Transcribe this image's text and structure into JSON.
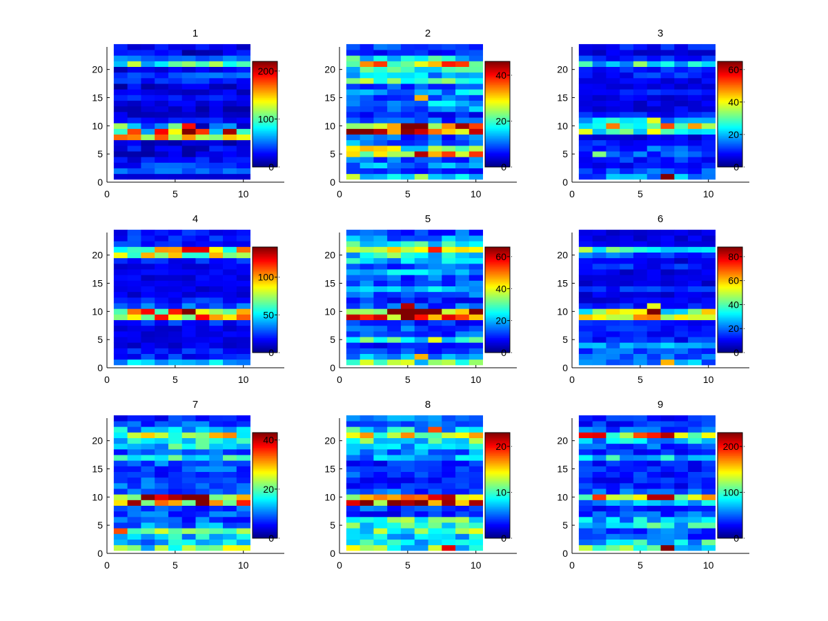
{
  "chart_data": [
    {
      "type": "heatmap",
      "title": "1",
      "xlim": [
        0,
        13
      ],
      "ylim": [
        0,
        24
      ],
      "xticks": [
        0,
        5,
        10
      ],
      "yticks": [
        0,
        5,
        10,
        15,
        20
      ],
      "clim": [
        0,
        220
      ],
      "cticks": [
        0,
        100,
        200
      ],
      "colormap": "jet",
      "seed": 1,
      "rows": [
        [
          "17",
          "20"
        ],
        [
          "40",
          "55"
        ],
        [
          "20",
          "60"
        ],
        [
          "10",
          "40"
        ],
        [
          "5",
          "30"
        ],
        [
          "5",
          "40"
        ],
        [
          "5",
          "30"
        ],
        [
          "110",
          "175"
        ],
        [
          "60",
          "220"
        ],
        [
          "10",
          "120"
        ],
        [
          "20",
          "40"
        ],
        [
          "10",
          "30"
        ],
        [
          "5",
          "25"
        ],
        [
          "15",
          "35"
        ],
        [
          "20",
          "40"
        ],
        [
          "10",
          "30"
        ],
        [
          "5",
          "35"
        ],
        [
          "20",
          "45"
        ],
        [
          "30",
          "60"
        ],
        [
          "10",
          "40"
        ],
        [
          "60",
          "130"
        ],
        [
          "30",
          "60"
        ],
        [
          "5",
          "40"
        ],
        [
          "10",
          "35"
        ]
      ]
    },
    {
      "type": "heatmap",
      "title": "2",
      "xlim": [
        0,
        13
      ],
      "ylim": [
        0,
        24
      ],
      "xticks": [
        0,
        5,
        10
      ],
      "yticks": [
        0,
        5,
        10,
        15,
        20
      ],
      "clim": [
        0,
        46
      ],
      "cticks": [
        0,
        20,
        40
      ],
      "colormap": "jet",
      "seed": 2
    },
    {
      "type": "heatmap",
      "title": "3",
      "xlim": [
        0,
        13
      ],
      "ylim": [
        0,
        24
      ],
      "xticks": [
        0,
        5,
        10
      ],
      "yticks": [
        0,
        5,
        10,
        15,
        20
      ],
      "clim": [
        0,
        65
      ],
      "cticks": [
        0,
        20,
        40,
        60
      ],
      "colormap": "jet",
      "seed": 3
    },
    {
      "type": "heatmap",
      "title": "4",
      "xlim": [
        0,
        13
      ],
      "ylim": [
        0,
        24
      ],
      "xticks": [
        0,
        5,
        10
      ],
      "yticks": [
        0,
        5,
        10,
        15,
        20
      ],
      "clim": [
        0,
        140
      ],
      "cticks": [
        0,
        50,
        100
      ],
      "colormap": "jet",
      "seed": 4
    },
    {
      "type": "heatmap",
      "title": "5",
      "xlim": [
        0,
        13
      ],
      "ylim": [
        0,
        24
      ],
      "xticks": [
        0,
        5,
        10
      ],
      "yticks": [
        0,
        5,
        10,
        15,
        20
      ],
      "clim": [
        0,
        66
      ],
      "cticks": [
        0,
        20,
        40,
        60
      ],
      "colormap": "jet",
      "seed": 5
    },
    {
      "type": "heatmap",
      "title": "6",
      "xlim": [
        0,
        13
      ],
      "ylim": [
        0,
        24
      ],
      "xticks": [
        0,
        5,
        10
      ],
      "yticks": [
        0,
        5,
        10,
        15,
        20
      ],
      "clim": [
        0,
        88
      ],
      "cticks": [
        0,
        20,
        40,
        60,
        80
      ],
      "colormap": "jet",
      "seed": 6
    },
    {
      "type": "heatmap",
      "title": "7",
      "xlim": [
        0,
        13
      ],
      "ylim": [
        0,
        24
      ],
      "xticks": [
        0,
        5,
        10
      ],
      "yticks": [
        0,
        5,
        10,
        15,
        20
      ],
      "clim": [
        0,
        43
      ],
      "cticks": [
        0,
        20,
        40
      ],
      "colormap": "jet",
      "seed": 7
    },
    {
      "type": "heatmap",
      "title": "8",
      "xlim": [
        0,
        13
      ],
      "ylim": [
        0,
        24
      ],
      "xticks": [
        0,
        5,
        10
      ],
      "yticks": [
        0,
        5,
        10,
        15,
        20
      ],
      "clim": [
        0,
        23
      ],
      "cticks": [
        0,
        10,
        20
      ],
      "colormap": "jet",
      "seed": 8
    },
    {
      "type": "heatmap",
      "title": "9",
      "xlim": [
        0,
        13
      ],
      "ylim": [
        0,
        24
      ],
      "xticks": [
        0,
        5,
        10
      ],
      "yticks": [
        0,
        5,
        10,
        15,
        20
      ],
      "clim": [
        0,
        230
      ],
      "cticks": [
        0,
        100,
        200
      ],
      "colormap": "jet",
      "seed": 9
    }
  ]
}
